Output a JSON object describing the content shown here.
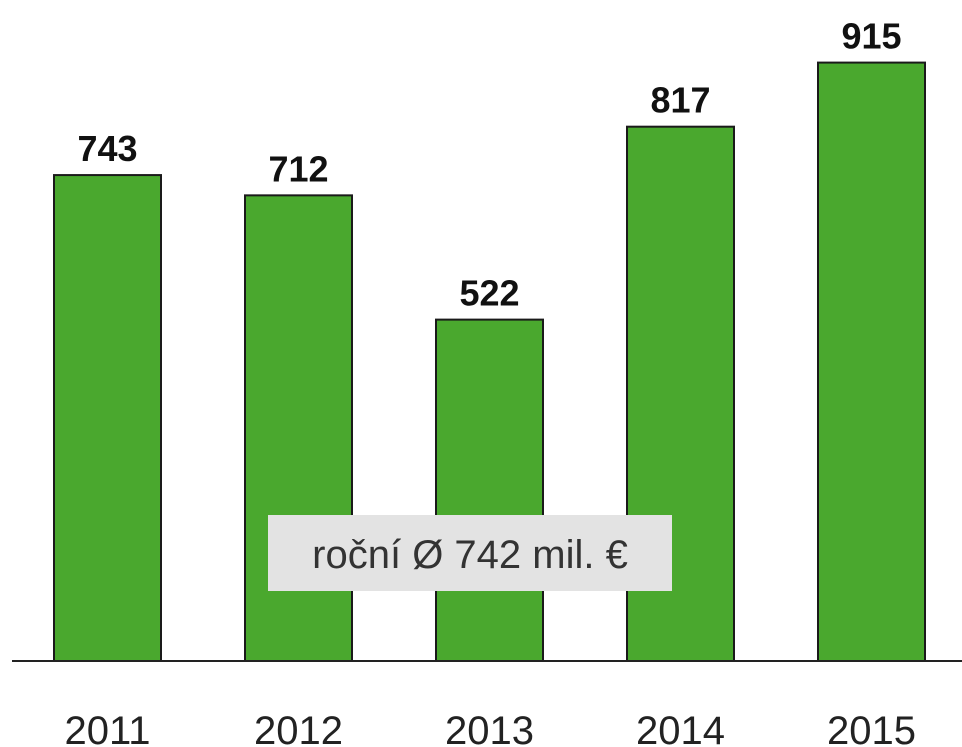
{
  "chart_data": {
    "type": "bar",
    "categories": [
      "2011",
      "2012",
      "2013",
      "2014",
      "2015"
    ],
    "values": [
      743,
      712,
      522,
      817,
      915
    ],
    "color": "#4aa82e",
    "ylim": [
      0,
      1000
    ],
    "annotation": "roční Ø 742 mil. €"
  }
}
